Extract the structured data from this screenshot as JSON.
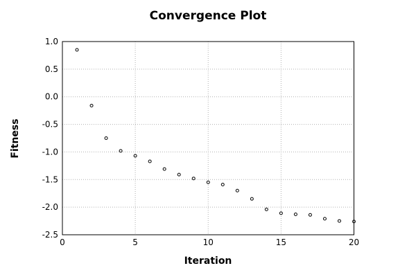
{
  "chart_data": {
    "type": "scatter",
    "title": "Convergence Plot",
    "xlabel": "Iteration",
    "ylabel": "Fitness",
    "xlim": [
      0,
      20
    ],
    "ylim": [
      -2.5,
      1.0
    ],
    "xticks": [
      0,
      5,
      10,
      15,
      20
    ],
    "xtick_labels": [
      "0",
      "5",
      "10",
      "15",
      "20"
    ],
    "yticks": [
      1.0,
      0.5,
      0.0,
      -0.5,
      -1.0,
      -1.5,
      -2.0,
      -2.5
    ],
    "ytick_labels": [
      "1.0",
      "0.5",
      "0.0",
      "-0.5",
      "-1.0",
      "-1.5",
      "-2.0",
      "-2.5"
    ],
    "grid": true,
    "grid_style": "dotted",
    "legend": "none",
    "series": [
      {
        "name": "fitness",
        "marker": "open-circle",
        "color": "#000000",
        "x": [
          1,
          2,
          3,
          4,
          5,
          6,
          7,
          8,
          9,
          10,
          11,
          12,
          13,
          14,
          15,
          16,
          17,
          18,
          19,
          20
        ],
        "y": [
          0.85,
          -0.16,
          -0.75,
          -0.98,
          -1.07,
          -1.17,
          -1.31,
          -1.41,
          -1.48,
          -1.55,
          -1.59,
          -1.7,
          -1.85,
          -2.04,
          -2.11,
          -2.13,
          -2.14,
          -2.21,
          -2.25,
          -2.26
        ]
      }
    ],
    "colors": {
      "background": "#ffffff",
      "border": "#000000",
      "grid": "#b0b0b0",
      "text": "#000000"
    }
  }
}
